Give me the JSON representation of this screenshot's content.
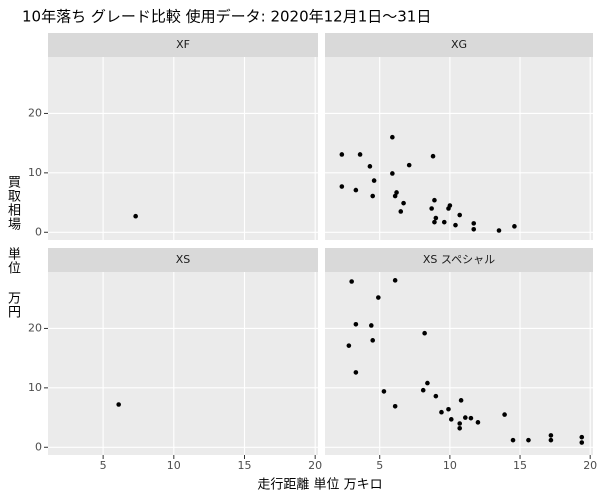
{
  "chart_data": {
    "type": "scatter",
    "title": "10年落ち グレード比較 使用データ: 2020年12月1日～31日",
    "x_label": "走行距離 単位 万キロ",
    "y_label": "買取相場 単位 万円",
    "color": "#000000",
    "grid": true,
    "xlim": [
      1.1,
      20.2
    ],
    "xticks": [
      5,
      10,
      15,
      20
    ],
    "ylim": [
      -1.3,
      29.5
    ],
    "yticks": [
      0,
      10,
      20
    ],
    "facets": [
      {
        "name": "XF",
        "x": [
          7.3
        ],
        "y": [
          2.7
        ]
      },
      {
        "name": "XG",
        "x": [
          2.3,
          2.3,
          3.3,
          3.6,
          4.3,
          4.6,
          4.5,
          5.9,
          5.9,
          6.1,
          6.2,
          6.5,
          6.7,
          7.1,
          8.8,
          8.9,
          8.7,
          9.0,
          8.9,
          9.6,
          9.9,
          10.0,
          10.4,
          10.7,
          11.7,
          11.7,
          13.5,
          14.6
        ],
        "y": [
          13.1,
          7.7,
          7.1,
          13.1,
          11.1,
          8.7,
          6.1,
          16.0,
          9.9,
          6.1,
          6.7,
          3.5,
          4.9,
          11.3,
          12.8,
          5.4,
          4.0,
          2.4,
          1.7,
          1.7,
          4.0,
          4.5,
          1.2,
          2.9,
          1.5,
          0.5,
          0.3,
          1.0
        ]
      },
      {
        "name": "XS",
        "x": [
          6.1
        ],
        "y": [
          7.2
        ]
      },
      {
        "name": "XS スペシャル",
        "x": [
          3.0,
          2.8,
          3.3,
          3.3,
          4.4,
          4.5,
          4.9,
          5.3,
          6.1,
          6.1,
          8.2,
          8.1,
          8.4,
          9.0,
          9.4,
          9.9,
          10.1,
          10.7,
          10.7,
          10.8,
          11.1,
          11.5,
          12.0,
          13.9,
          14.5,
          15.6,
          17.2,
          17.2,
          19.4,
          19.4
        ],
        "y": [
          27.9,
          17.1,
          20.7,
          12.6,
          20.5,
          18.0,
          25.2,
          9.4,
          28.1,
          6.9,
          19.2,
          9.6,
          10.8,
          8.6,
          5.9,
          6.4,
          4.7,
          4.0,
          3.2,
          7.9,
          5.0,
          4.9,
          4.2,
          5.5,
          1.2,
          1.2,
          2.0,
          1.2,
          1.7,
          0.8
        ]
      }
    ]
  }
}
